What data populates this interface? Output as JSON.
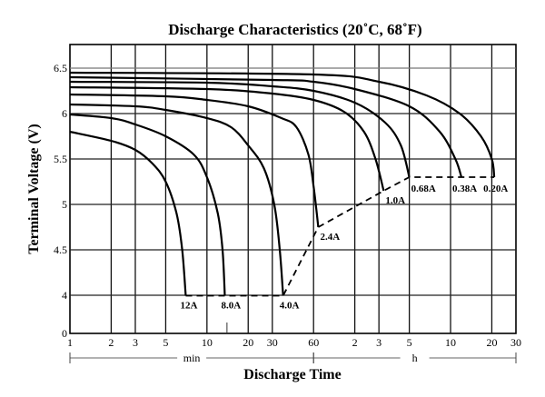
{
  "chart_data": {
    "type": "line",
    "title": "Discharge Characteristics (20˚C, 68˚F)",
    "xlabel": "Discharge Time",
    "ylabel": "Terminal Voltage (V)",
    "x_scale": "log",
    "x_unit": "minutes",
    "xlim": [
      1,
      1800
    ],
    "x_ticks": [
      {
        "value": 1,
        "label": "1"
      },
      {
        "value": 2,
        "label": "2"
      },
      {
        "value": 3,
        "label": "3"
      },
      {
        "value": 5,
        "label": "5"
      },
      {
        "value": 10,
        "label": "10"
      },
      {
        "value": 20,
        "label": "20"
      },
      {
        "value": 30,
        "label": "30"
      },
      {
        "value": 60,
        "label": "60"
      },
      {
        "value": 120,
        "label": "2"
      },
      {
        "value": 180,
        "label": "3"
      },
      {
        "value": 300,
        "label": "5"
      },
      {
        "value": 600,
        "label": "10"
      },
      {
        "value": 1200,
        "label": "20"
      },
      {
        "value": 1800,
        "label": "30"
      }
    ],
    "x_extra_minor": [
      14
    ],
    "x_unit_ranges": [
      {
        "label": "min",
        "from": 1,
        "to": 60
      },
      {
        "label": "h",
        "from": 60,
        "to": 1800
      }
    ],
    "ylim": [
      0,
      6.75
    ],
    "y_axis_break": "between 0 and 4",
    "y_ticks": [
      {
        "value": 0,
        "label": "0"
      },
      {
        "value": 4,
        "label": "4"
      },
      {
        "value": 4.5,
        "label": "4.5"
      },
      {
        "value": 5,
        "label": "5"
      },
      {
        "value": 5.5,
        "label": "5.5"
      },
      {
        "value": 6,
        "label": "6"
      },
      {
        "value": 6.5,
        "label": "6.5"
      }
    ],
    "grid": true,
    "series": [
      {
        "name": "12A",
        "points": [
          [
            1,
            5.8
          ],
          [
            2,
            5.7
          ],
          [
            3,
            5.6
          ],
          [
            4,
            5.45
          ],
          [
            5,
            5.25
          ],
          [
            6,
            4.9
          ],
          [
            6.6,
            4.5
          ],
          [
            7,
            3.95
          ]
        ]
      },
      {
        "name": "8.0A",
        "points": [
          [
            1,
            5.99
          ],
          [
            2,
            5.95
          ],
          [
            3,
            5.88
          ],
          [
            5,
            5.75
          ],
          [
            8,
            5.55
          ],
          [
            10,
            5.3
          ],
          [
            12,
            4.9
          ],
          [
            13,
            4.5
          ],
          [
            13.5,
            3.95
          ]
        ]
      },
      {
        "name": "4.0A",
        "points": [
          [
            1,
            6.1
          ],
          [
            3,
            6.08
          ],
          [
            5,
            6.04
          ],
          [
            10,
            5.95
          ],
          [
            15,
            5.85
          ],
          [
            20,
            5.65
          ],
          [
            26,
            5.4
          ],
          [
            31,
            5.0
          ],
          [
            34,
            4.5
          ],
          [
            36,
            3.95
          ]
        ]
      },
      {
        "name": "2.4A",
        "points": [
          [
            1,
            6.21
          ],
          [
            5,
            6.19
          ],
          [
            10,
            6.15
          ],
          [
            20,
            6.08
          ],
          [
            35,
            5.95
          ],
          [
            45,
            5.85
          ],
          [
            55,
            5.55
          ],
          [
            60,
            5.2
          ],
          [
            65,
            4.75
          ]
        ]
      },
      {
        "name": "1.0A",
        "points": [
          [
            1,
            6.29
          ],
          [
            10,
            6.27
          ],
          [
            30,
            6.22
          ],
          [
            60,
            6.15
          ],
          [
            100,
            6.02
          ],
          [
            140,
            5.8
          ],
          [
            170,
            5.5
          ],
          [
            195,
            5.15
          ]
        ]
      },
      {
        "name": "0.68A",
        "points": [
          [
            1,
            6.35
          ],
          [
            10,
            6.34
          ],
          [
            30,
            6.3
          ],
          [
            60,
            6.25
          ],
          [
            120,
            6.12
          ],
          [
            200,
            5.9
          ],
          [
            260,
            5.65
          ],
          [
            300,
            5.3
          ]
        ]
      },
      {
        "name": "0.38A",
        "points": [
          [
            1,
            6.4
          ],
          [
            30,
            6.37
          ],
          [
            60,
            6.35
          ],
          [
            120,
            6.27
          ],
          [
            300,
            6.08
          ],
          [
            500,
            5.8
          ],
          [
            650,
            5.5
          ],
          [
            720,
            5.3
          ]
        ]
      },
      {
        "name": "0.20A",
        "points": [
          [
            1,
            6.45
          ],
          [
            60,
            6.43
          ],
          [
            180,
            6.35
          ],
          [
            400,
            6.2
          ],
          [
            700,
            6.0
          ],
          [
            1000,
            5.75
          ],
          [
            1200,
            5.5
          ],
          [
            1250,
            5.3
          ]
        ]
      }
    ],
    "cutoff_line": {
      "style": "dashed",
      "points": [
        [
          7,
          3.95
        ],
        [
          13.5,
          3.95
        ],
        [
          36,
          3.95
        ],
        [
          65,
          4.75
        ],
        [
          195,
          5.15
        ],
        [
          300,
          5.3
        ],
        [
          720,
          5.3
        ],
        [
          1250,
          5.3
        ]
      ]
    }
  }
}
